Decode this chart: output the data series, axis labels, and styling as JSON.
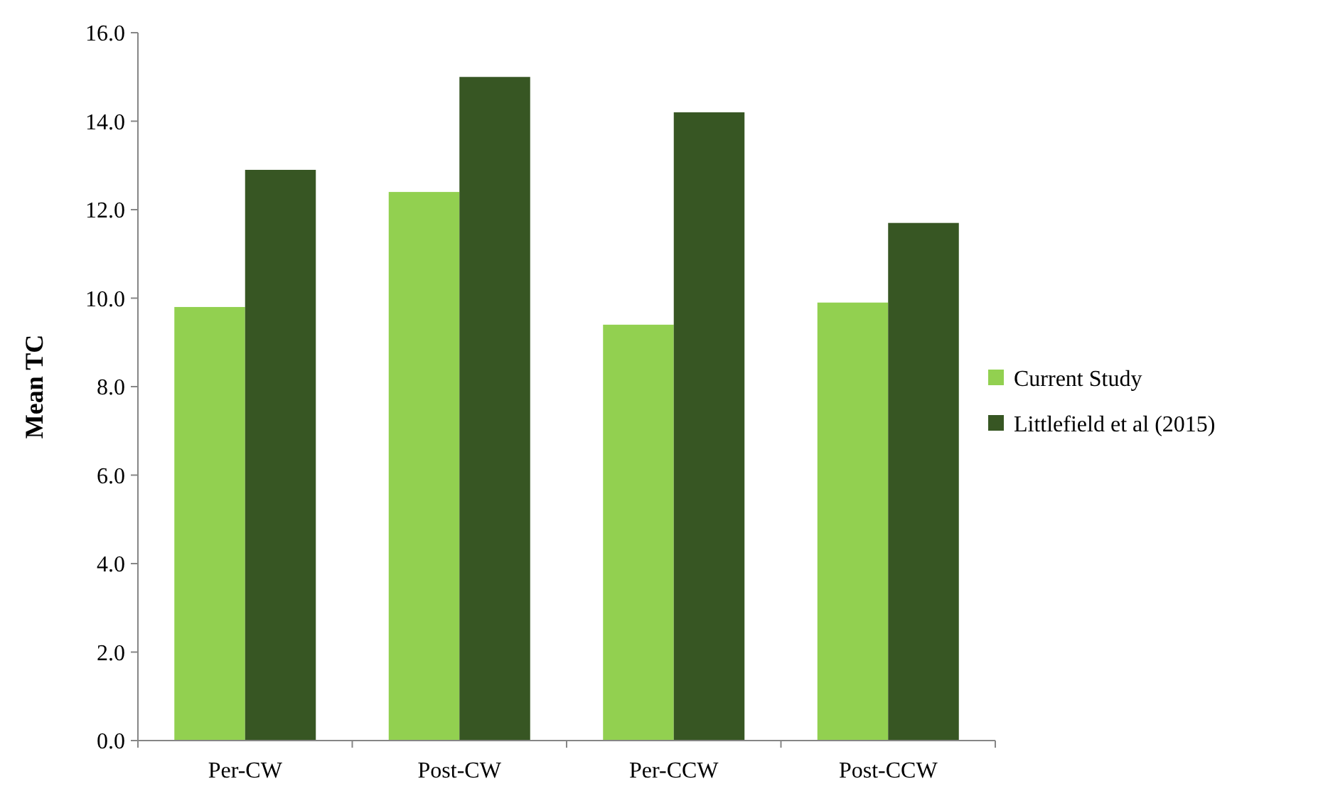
{
  "chart_data": {
    "type": "bar",
    "ylabel": "Mean TC",
    "categories": [
      "Per-CW",
      "Post-CW",
      "Per-CCW",
      "Post-CCW"
    ],
    "series": [
      {
        "name": "Current Study",
        "color": "#92d050",
        "values": [
          9.8,
          12.4,
          9.4,
          9.9
        ]
      },
      {
        "name": "Littlefield et al (2015)",
        "color": "#375623",
        "values": [
          12.9,
          15.0,
          14.2,
          11.7
        ]
      }
    ],
    "ylim": [
      0,
      16
    ],
    "yticks": [
      {
        "value": 0,
        "label": "0.0"
      },
      {
        "value": 2,
        "label": "2.0"
      },
      {
        "value": 4,
        "label": "4.0"
      },
      {
        "value": 6,
        "label": "6.0"
      },
      {
        "value": 8,
        "label": "8.0"
      },
      {
        "value": 10,
        "label": "10.0"
      },
      {
        "value": 12,
        "label": "12.0"
      },
      {
        "value": 14,
        "label": "14.0"
      },
      {
        "value": 16,
        "label": "16.0"
      }
    ],
    "grid": false,
    "legend": "right"
  }
}
